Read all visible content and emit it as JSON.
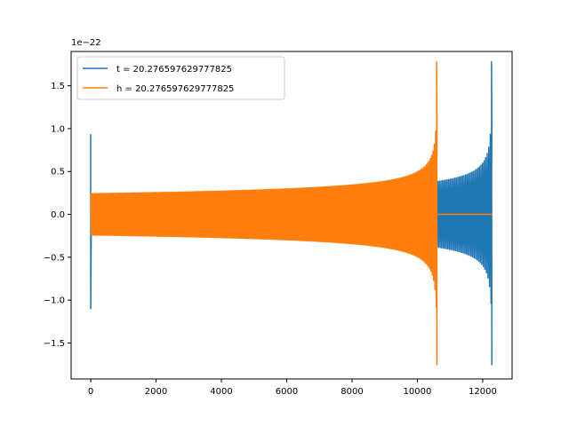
{
  "chart_data": {
    "type": "line",
    "offset_label": "1e−22",
    "scale_exponent": -22,
    "xlim": [
      -600,
      12900
    ],
    "ylim": [
      -1.92,
      1.9
    ],
    "x_ticks": [
      0,
      2000,
      4000,
      6000,
      8000,
      10000,
      12000
    ],
    "x_tick_labels": [
      "0",
      "2000",
      "4000",
      "6000",
      "8000",
      "10000",
      "12000"
    ],
    "y_ticks": [
      -1.5,
      -1.0,
      -0.5,
      0.0,
      0.5,
      1.0,
      1.5
    ],
    "y_tick_labels": [
      "−1.5",
      "−1.0",
      "−0.5",
      "0.0",
      "0.5",
      "1.0",
      "1.5"
    ],
    "grid": false,
    "legend_position": "top-left",
    "series": [
      {
        "name": "t = 20.276597629777825",
        "color": "#1f77b4",
        "spike": {
          "x": 0,
          "max": 0.93,
          "min": -1.1
        },
        "oscillation": {
          "x_start": 0,
          "x_end": 12280,
          "amp_start": 0.25,
          "amp_peak": 1.78,
          "amp_end": -1.76
        },
        "tail": {
          "x_start": 12280,
          "x_end": 12300,
          "value": 0.0
        }
      },
      {
        "name": "h = 20.276597629777825",
        "color": "#ff7f0e",
        "oscillation": {
          "x_start": 0,
          "x_end": 10600,
          "amp_start": 0.26,
          "amp_peak": 1.78,
          "amp_end": -1.76
        },
        "tail": {
          "x_start": 10620,
          "x_end": 12300,
          "value": 0.0
        }
      }
    ]
  }
}
